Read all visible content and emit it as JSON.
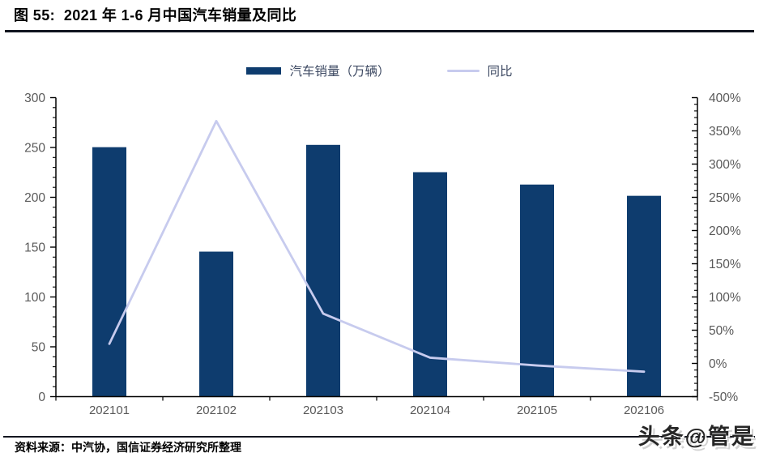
{
  "chart_data": {
    "type": "bar+line",
    "title": "图 55:  2021 年 1-6 月中国汽车销量及同比",
    "categories": [
      "202101",
      "202102",
      "202103",
      "202104",
      "202105",
      "202106"
    ],
    "series": [
      {
        "name": "汽车销量（万辆）",
        "type": "bar",
        "axis": "left",
        "color": "#0E3C6E",
        "values": [
          250.3,
          145.5,
          252.6,
          225.2,
          212.8,
          201.5
        ]
      },
      {
        "name": "同比",
        "type": "line",
        "axis": "right",
        "color": "#C7CBEE",
        "values": [
          29.5,
          364.8,
          74.9,
          8.6,
          -3.1,
          -12.4
        ]
      }
    ],
    "left_axis": {
      "min": 0,
      "max": 300,
      "step": 50,
      "minor_step": 10,
      "tick_labels": [
        "0",
        "50",
        "100",
        "150",
        "200",
        "250",
        "300"
      ]
    },
    "right_axis": {
      "min": -50,
      "max": 400,
      "step": 50,
      "minor_step": 10,
      "format": "percent",
      "tick_labels": [
        "-50%",
        "0%",
        "50%",
        "100%",
        "150%",
        "200%",
        "250%",
        "300%",
        "350%",
        "400%"
      ]
    },
    "grid": false,
    "legend_position": "top"
  },
  "footer": {
    "source": "资料来源：中汽协，国信证券经济研究所整理"
  },
  "watermark": "头条@管是"
}
